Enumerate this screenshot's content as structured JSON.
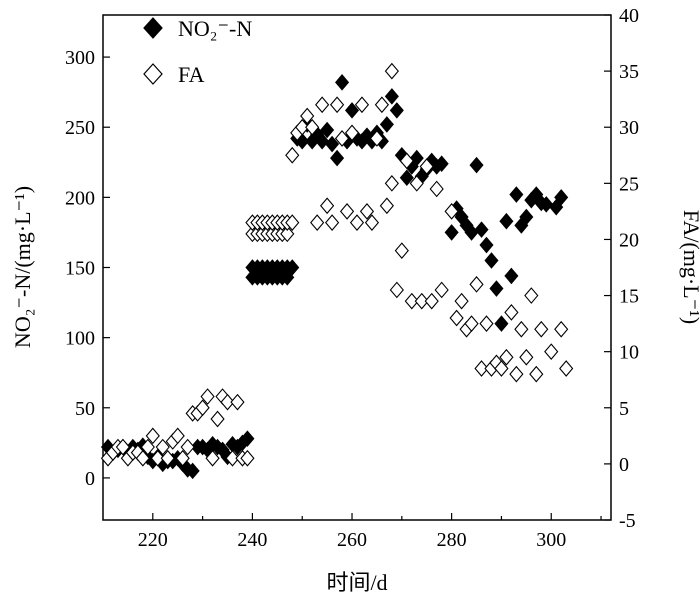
{
  "chart_data": {
    "type": "scatter",
    "title": "",
    "xlabel": "时间/d",
    "ylabel_left": "NO₂⁻-N/(mg·L⁻¹)",
    "ylabel_right": "FA/(mg·L⁻¹)",
    "xlim": [
      210,
      312
    ],
    "ylim_left": [
      -30,
      330
    ],
    "ylim_right": [
      -5,
      40
    ],
    "x_ticks": [
      220,
      240,
      260,
      280,
      300
    ],
    "y_left_ticks": [
      0,
      50,
      100,
      150,
      200,
      250,
      300
    ],
    "y_right_ticks": [
      -5,
      0,
      5,
      10,
      15,
      20,
      25,
      30,
      35,
      40
    ],
    "legend_position": "top-left",
    "grid": false,
    "series": [
      {
        "name": "NO₂⁻-N",
        "axis": "left",
        "marker": "filled-diamond",
        "color": "#000000",
        "points": [
          [
            211,
            22
          ],
          [
            212,
            18
          ],
          [
            213,
            20
          ],
          [
            214,
            22
          ],
          [
            215,
            18
          ],
          [
            216,
            22
          ],
          [
            217,
            20
          ],
          [
            218,
            23
          ],
          [
            219,
            15
          ],
          [
            220,
            12
          ],
          [
            221,
            15
          ],
          [
            222,
            10
          ],
          [
            223,
            12
          ],
          [
            224,
            12
          ],
          [
            225,
            14
          ],
          [
            226,
            10
          ],
          [
            227,
            6
          ],
          [
            228,
            5
          ],
          [
            229,
            22
          ],
          [
            230,
            22
          ],
          [
            231,
            20
          ],
          [
            232,
            24
          ],
          [
            233,
            22
          ],
          [
            234,
            20
          ],
          [
            235,
            15
          ],
          [
            236,
            24
          ],
          [
            237,
            22
          ],
          [
            238,
            25
          ],
          [
            239,
            28
          ],
          [
            240,
            143
          ],
          [
            240,
            150
          ],
          [
            241,
            143
          ],
          [
            241,
            150
          ],
          [
            242,
            143
          ],
          [
            242,
            150
          ],
          [
            243,
            143
          ],
          [
            243,
            150
          ],
          [
            244,
            143
          ],
          [
            244,
            150
          ],
          [
            245,
            143
          ],
          [
            245,
            150
          ],
          [
            246,
            143
          ],
          [
            246,
            150
          ],
          [
            247,
            143
          ],
          [
            247,
            150
          ],
          [
            248,
            150
          ],
          [
            249,
            242
          ],
          [
            250,
            240
          ],
          [
            251,
            252
          ],
          [
            252,
            240
          ],
          [
            253,
            245
          ],
          [
            254,
            240
          ],
          [
            255,
            248
          ],
          [
            256,
            238
          ],
          [
            257,
            228
          ],
          [
            258,
            242
          ],
          [
            258,
            282
          ],
          [
            259,
            240
          ],
          [
            260,
            262
          ],
          [
            261,
            242
          ],
          [
            262,
            240
          ],
          [
            263,
            244
          ],
          [
            264,
            240
          ],
          [
            265,
            246
          ],
          [
            266,
            240
          ],
          [
            267,
            252
          ],
          [
            268,
            272
          ],
          [
            269,
            262
          ],
          [
            270,
            230
          ],
          [
            271,
            214
          ],
          [
            272,
            222
          ],
          [
            273,
            228
          ],
          [
            274,
            215
          ],
          [
            275,
            220
          ],
          [
            276,
            226
          ],
          [
            277,
            222
          ],
          [
            278,
            224
          ],
          [
            280,
            175
          ],
          [
            281,
            192
          ],
          [
            282,
            186
          ],
          [
            283,
            180
          ],
          [
            284,
            175
          ],
          [
            285,
            223
          ],
          [
            286,
            177
          ],
          [
            287,
            166
          ],
          [
            288,
            155
          ],
          [
            289,
            135
          ],
          [
            290,
            110
          ],
          [
            291,
            183
          ],
          [
            292,
            144
          ],
          [
            293,
            202
          ],
          [
            294,
            180
          ],
          [
            295,
            186
          ],
          [
            296,
            198
          ],
          [
            297,
            202
          ],
          [
            298,
            196
          ],
          [
            299,
            195
          ],
          [
            301,
            193
          ],
          [
            302,
            200
          ]
        ]
      },
      {
        "name": "FA",
        "axis": "right",
        "marker": "open-diamond",
        "color": "#000000",
        "points": [
          [
            211,
            0.5
          ],
          [
            212,
            1.0
          ],
          [
            213,
            1.5
          ],
          [
            214,
            1.5
          ],
          [
            215,
            0.5
          ],
          [
            216,
            1.0
          ],
          [
            217,
            1.0
          ],
          [
            218,
            0.5
          ],
          [
            219,
            1.5
          ],
          [
            220,
            2.5
          ],
          [
            221,
            0.5
          ],
          [
            222,
            1.5
          ],
          [
            223,
            0.5
          ],
          [
            224,
            2.0
          ],
          [
            225,
            2.5
          ],
          [
            226,
            0.5
          ],
          [
            227,
            1.5
          ],
          [
            228,
            4.5
          ],
          [
            229,
            4.5
          ],
          [
            230,
            5.0
          ],
          [
            231,
            6.0
          ],
          [
            232,
            0.5
          ],
          [
            233,
            4.0
          ],
          [
            234,
            6.0
          ],
          [
            235,
            5.5
          ],
          [
            236,
            0.5
          ],
          [
            237,
            5.5
          ],
          [
            238,
            0.5
          ],
          [
            239,
            0.5
          ],
          [
            240,
            20.5
          ],
          [
            240,
            21.5
          ],
          [
            241,
            20.5
          ],
          [
            241,
            21.5
          ],
          [
            242,
            20.5
          ],
          [
            242,
            21.5
          ],
          [
            243,
            20.5
          ],
          [
            243,
            21.5
          ],
          [
            244,
            20.5
          ],
          [
            244,
            21.5
          ],
          [
            245,
            20.5
          ],
          [
            245,
            21.5
          ],
          [
            246,
            20.5
          ],
          [
            246,
            21.5
          ],
          [
            247,
            20.5
          ],
          [
            247,
            21.5
          ],
          [
            248,
            21.5
          ],
          [
            248,
            27.5
          ],
          [
            249,
            29.5
          ],
          [
            250,
            30.0
          ],
          [
            251,
            31.0
          ],
          [
            252,
            30.0
          ],
          [
            253,
            21.5
          ],
          [
            254,
            32.0
          ],
          [
            255,
            23.0
          ],
          [
            256,
            21.5
          ],
          [
            257,
            32.0
          ],
          [
            258,
            29.0
          ],
          [
            259,
            22.5
          ],
          [
            260,
            29.5
          ],
          [
            261,
            21.5
          ],
          [
            262,
            32.0
          ],
          [
            263,
            22.5
          ],
          [
            264,
            21.5
          ],
          [
            265,
            29.0
          ],
          [
            266,
            32.0
          ],
          [
            267,
            23.0
          ],
          [
            268,
            25.0
          ],
          [
            268,
            35.0
          ],
          [
            269,
            15.5
          ],
          [
            270,
            19.0
          ],
          [
            271,
            27.0
          ],
          [
            272,
            14.5
          ],
          [
            273,
            25.0
          ],
          [
            274,
            14.5
          ],
          [
            275,
            26.5
          ],
          [
            276,
            14.5
          ],
          [
            277,
            24.5
          ],
          [
            278,
            15.5
          ],
          [
            280,
            22.5
          ],
          [
            281,
            13.0
          ],
          [
            282,
            14.5
          ],
          [
            283,
            12.0
          ],
          [
            284,
            12.5
          ],
          [
            285,
            16.0
          ],
          [
            286,
            8.5
          ],
          [
            287,
            12.5
          ],
          [
            288,
            8.5
          ],
          [
            289,
            9.0
          ],
          [
            290,
            8.5
          ],
          [
            291,
            9.5
          ],
          [
            292,
            13.5
          ],
          [
            293,
            8.0
          ],
          [
            294,
            12.0
          ],
          [
            295,
            9.5
          ],
          [
            296,
            15.0
          ],
          [
            297,
            8.0
          ],
          [
            298,
            12.0
          ],
          [
            300,
            10.0
          ],
          [
            302,
            12.0
          ],
          [
            303,
            8.5
          ]
        ]
      }
    ]
  }
}
